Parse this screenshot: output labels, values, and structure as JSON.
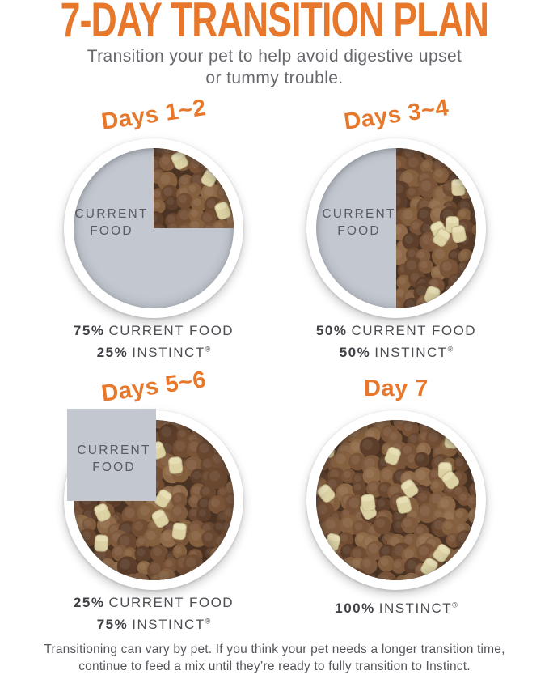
{
  "header": {
    "title": "7-DAY TRANSITION PLAN",
    "subtitle_line1": "Transition your pet to help avoid digestive upset",
    "subtitle_line2": "or tummy trouble."
  },
  "labels": {
    "current_line1": "CURRENT",
    "current_line2": "FOOD",
    "reg_mark": "®"
  },
  "bowls": [
    {
      "heading": "Days 1~2",
      "mix": {
        "current_food_pct": 75,
        "instinct_pct": 25
      },
      "lines": [
        {
          "pct": "75%",
          "text": "CURRENT FOOD"
        },
        {
          "pct": "25%",
          "text": "INSTINCT"
        }
      ]
    },
    {
      "heading": "Days 3~4",
      "mix": {
        "current_food_pct": 50,
        "instinct_pct": 50
      },
      "lines": [
        {
          "pct": "50%",
          "text": "CURRENT FOOD"
        },
        {
          "pct": "50%",
          "text": "INSTINCT"
        }
      ]
    },
    {
      "heading": "Days 5~6",
      "mix": {
        "current_food_pct": 25,
        "instinct_pct": 75
      },
      "lines": [
        {
          "pct": "25%",
          "text": "CURRENT FOOD"
        },
        {
          "pct": "75%",
          "text": "INSTINCT"
        }
      ]
    },
    {
      "heading": "Day 7",
      "mix": {
        "current_food_pct": 0,
        "instinct_pct": 100
      },
      "lines": [
        {
          "pct": "100%",
          "text": "INSTINCT"
        }
      ]
    }
  ],
  "footer": {
    "line1": "Transitioning can vary by pet. If you think your pet needs a longer transition time,",
    "line2": "continue to feed a mix until they’re ready to fully transition to Instinct."
  },
  "colors": {
    "accent_orange": "#E6772B",
    "bowl_gray": "#C3C8D0",
    "current_food_text": "#595B62",
    "caption_text": "#4B4D52",
    "kibble_base": "#4A3322",
    "kibble_browns": [
      "#6A4830",
      "#7A5438",
      "#85603F",
      "#5C3E2A",
      "#8F6A48",
      "#714D33",
      "#7F5A3D"
    ],
    "cream_fill": "#DCD2A4",
    "cream_edge": "#C2B68A",
    "cream_highlight": "#E7DEB6"
  }
}
